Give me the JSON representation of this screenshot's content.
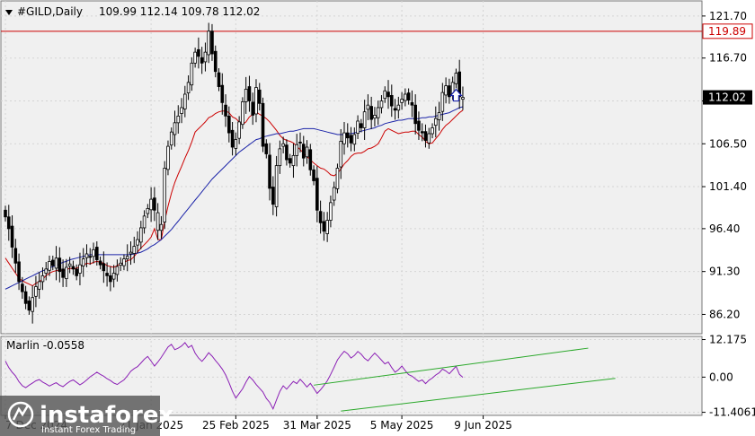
{
  "chart_data": [
    {
      "type": "candlestick",
      "header": {
        "symbol": "#GILD,Daily",
        "ohlc": "109.99 112.14 109.78 112.02"
      },
      "y_ticks": [
        "121.70",
        "116.70",
        "111.60",
        "106.50",
        "101.40",
        "96.40",
        "91.30",
        "86.20"
      ],
      "y_tick_values": [
        121.7,
        116.7,
        111.6,
        106.5,
        101.4,
        96.4,
        91.3,
        86.2
      ],
      "ylim": [
        83.9,
        123.5
      ],
      "resistance_level": {
        "value": 119.89,
        "label": "119.89",
        "color": "#cc0000"
      },
      "last_price": {
        "value": 112.02,
        "label": "112.02"
      },
      "x_ticks": [
        {
          "label": "7 Dec 2024",
          "bar": 0
        },
        {
          "label": "21 Jan 2025",
          "bar": 43
        },
        {
          "label": "25 Feb 2025",
          "bar": 68
        },
        {
          "label": "31 Mar 2025",
          "bar": 92
        },
        {
          "label": "5 May 2025",
          "bar": 117
        },
        {
          "label": "9 Jun 2025",
          "bar": 141
        }
      ],
      "closes": [
        97.8,
        96.4,
        94.2,
        92.3,
        90.1,
        88.9,
        87.5,
        86.7,
        88.2,
        89.5,
        90.1,
        90.8,
        91.6,
        92.5,
        92.0,
        92.9,
        91.3,
        90.6,
        91.8,
        92.2,
        91.6,
        90.8,
        92.1,
        92.8,
        93.4,
        93.1,
        93.9,
        92.7,
        92.1,
        91.4,
        90.8,
        90.1,
        91.1,
        91.9,
        92.3,
        92.8,
        93.1,
        93.6,
        94.3,
        95.1,
        96.5,
        97.9,
        98.8,
        99.9,
        98.6,
        96.2,
        96.9,
        103.6,
        106.2,
        107.9,
        109.0,
        109.8,
        110.8,
        112.4,
        113.8,
        116.1,
        117.4,
        116.9,
        116.1,
        117.4,
        119.9,
        117.2,
        115.1,
        113.3,
        111.4,
        109.8,
        107.8,
        106.1,
        107.0,
        109.1,
        111.5,
        113.0,
        111.6,
        109.9,
        113.2,
        111.3,
        106.2,
        105.3,
        101.2,
        99.3,
        103.9,
        105.9,
        106.5,
        104.6,
        104.2,
        105.1,
        106.4,
        106.6,
        104.8,
        106.1,
        103.4,
        102.1,
        98.6,
        97.1,
        96.1,
        97.4,
        99.5,
        101.3,
        103.6,
        106.8,
        107.8,
        107.2,
        106.6,
        107.6,
        109.2,
        108.4,
        110.3,
        111.1,
        109.4,
        109.9,
        110.8,
        111.6,
        112.8,
        112.1,
        111.0,
        110.5,
        111.1,
        111.8,
        112.4,
        111.7,
        111.1,
        108.9,
        108.1,
        107.8,
        106.9,
        107.7,
        108.4,
        109.5,
        110.2,
        112.6,
        113.4,
        112.1,
        113.8,
        114.9,
        112.1,
        112.02
      ],
      "bullish_bars": [
        45,
        52,
        69,
        98,
        128,
        135
      ],
      "candle_color": "#000000",
      "indicators": [
        {
          "name": "red-ma",
          "color": "#cc0000",
          "values": [
            92.9,
            92.3,
            91.7,
            91.1,
            90.5,
            90.2,
            90.0,
            89.8,
            89.6,
            89.9,
            90.1,
            90.4,
            90.8,
            91.1,
            91.3,
            91.4,
            91.5,
            91.4,
            91.5,
            91.7,
            91.6,
            91.7,
            91.9,
            92.0,
            92.3,
            92.2,
            92.4,
            92.5,
            92.4,
            92.3,
            92.0,
            91.9,
            91.8,
            92.0,
            92.2,
            92.4,
            92.6,
            92.7,
            93.1,
            93.6,
            94.1,
            94.5,
            94.9,
            95.4,
            96.4,
            95.1,
            95.1,
            97.3,
            99.1,
            100.6,
            101.9,
            102.9,
            103.8,
            104.8,
            105.7,
            106.7,
            107.9,
            108.3,
            108.7,
            109.1,
            109.6,
            109.8,
            110.1,
            110.3,
            110.4,
            110.4,
            110.2,
            109.7,
            109.5,
            109.1,
            108.8,
            109.1,
            109.7,
            110.0,
            110.3,
            110.0,
            109.8,
            109.5,
            109.1,
            108.6,
            108.1,
            107.5,
            107.1,
            106.9,
            106.8,
            106.6,
            106.2,
            105.8,
            105.4,
            105.0,
            104.6,
            104.2,
            103.9,
            103.6,
            103.5,
            103.2,
            102.8,
            102.7,
            103.0,
            103.5,
            104.1,
            104.5,
            105.0,
            105.3,
            105.4,
            105.4,
            105.6,
            105.9,
            106.0,
            106.2,
            106.5,
            107.2,
            108.0,
            108.3,
            108.1,
            107.9,
            107.7,
            107.8,
            107.9,
            107.9,
            108.0,
            108.0,
            107.6,
            107.3,
            106.8,
            106.5,
            106.6,
            107.1,
            107.6,
            108.2,
            108.7,
            109.0,
            109.4,
            109.8,
            110.2,
            110.5
          ]
        },
        {
          "name": "blue-ma",
          "color": "#1a23a8",
          "values": [
            89.2,
            89.4,
            89.6,
            89.8,
            90.0,
            90.2,
            90.4,
            90.6,
            90.8,
            91.0,
            91.2,
            91.4,
            91.5,
            91.7,
            91.9,
            92.0,
            92.2,
            92.4,
            92.5,
            92.7,
            92.8,
            92.9,
            93.0,
            93.1,
            93.2,
            93.3,
            93.3,
            93.3,
            93.3,
            93.3,
            93.3,
            93.3,
            93.3,
            93.3,
            93.3,
            93.3,
            93.3,
            93.3,
            93.4,
            93.5,
            93.6,
            93.8,
            94.0,
            94.3,
            94.5,
            94.8,
            95.1,
            95.5,
            95.9,
            96.3,
            96.8,
            97.3,
            97.8,
            98.3,
            98.8,
            99.3,
            99.8,
            100.3,
            100.8,
            101.3,
            101.8,
            102.3,
            102.7,
            103.1,
            103.5,
            103.9,
            104.3,
            104.7,
            105.1,
            105.5,
            105.8,
            106.1,
            106.4,
            106.7,
            107.0,
            107.1,
            107.3,
            107.4,
            107.5,
            107.6,
            107.7,
            107.7,
            107.8,
            107.9,
            108.0,
            108.0,
            108.1,
            108.2,
            108.3,
            108.3,
            108.3,
            108.3,
            108.2,
            108.1,
            108.0,
            107.9,
            107.8,
            107.7,
            107.6,
            107.6,
            107.6,
            107.7,
            107.7,
            107.8,
            107.9,
            108.0,
            108.1,
            108.2,
            108.3,
            108.4,
            108.6,
            108.7,
            108.9,
            109.0,
            109.1,
            109.2,
            109.3,
            109.3,
            109.4,
            109.5,
            109.5,
            109.5,
            109.5,
            109.6,
            109.6,
            109.7,
            109.7,
            109.8,
            109.9,
            110.0,
            110.1,
            110.2,
            110.4,
            110.6,
            110.8,
            110.9
          ]
        }
      ],
      "signal_arrow": {
        "bar": 133,
        "direction": "up",
        "color": "#1a23a8"
      }
    },
    {
      "type": "line",
      "name": "Marlin",
      "header": {
        "label": "Marlin -0.0558"
      },
      "y_ticks": [
        "12.175",
        "0.00",
        "-11.4061"
      ],
      "y_tick_values": [
        12.175,
        0,
        -11.4061
      ],
      "ylim": [
        -12.4,
        13.2
      ],
      "color": "#8b1fb5",
      "values": [
        5.2,
        3.1,
        1.6,
        0.4,
        -1.5,
        -2.8,
        -3.4,
        -2.6,
        -1.9,
        -1.2,
        -0.8,
        -1.6,
        -2.2,
        -2.9,
        -2.3,
        -1.8,
        -2.6,
        -3.1,
        -2.2,
        -1.4,
        -0.9,
        -1.7,
        -2.5,
        -1.8,
        -0.9,
        0.1,
        0.8,
        1.6,
        0.9,
        0.3,
        -0.5,
        -1.1,
        -1.9,
        -2.4,
        -1.6,
        -0.9,
        0.4,
        1.9,
        2.8,
        3.4,
        4.6,
        5.8,
        6.7,
        5.2,
        3.6,
        4.9,
        6.4,
        8.1,
        9.8,
        10.6,
        8.9,
        9.4,
        10.1,
        11.2,
        9.6,
        10.3,
        7.8,
        6.2,
        5.1,
        6.4,
        7.9,
        6.8,
        5.4,
        4.1,
        2.6,
        0.7,
        -1.8,
        -4.6,
        -6.8,
        -5.3,
        -3.8,
        -1.6,
        0.2,
        -0.9,
        -2.4,
        -3.6,
        -4.8,
        -6.9,
        -8.2,
        -10.3,
        -7.4,
        -4.6,
        -2.8,
        -3.9,
        -2.6,
        -1.4,
        -2.1,
        -0.7,
        -1.9,
        -3.2,
        -2.0,
        -3.6,
        -5.3,
        -4.1,
        -2.7,
        -1.2,
        0.9,
        3.2,
        5.6,
        7.1,
        8.4,
        7.6,
        6.2,
        7.0,
        8.3,
        7.4,
        6.1,
        5.3,
        6.6,
        7.8,
        6.7,
        5.5,
        4.3,
        4.9,
        3.1,
        1.6,
        2.4,
        3.6,
        2.1,
        0.8,
        0.3,
        -0.6,
        -1.4,
        -0.9,
        -2.1,
        -1.0,
        -0.3,
        0.7,
        1.4,
        2.6,
        2.0,
        1.1,
        2.3,
        3.5,
        0.9,
        -0.06
      ],
      "channel_color": "#2aa82a",
      "channel_upper": {
        "x1": 91,
        "y1": -2.6,
        "x2": 172,
        "y2": 9.4
      },
      "channel_lower": {
        "x1": 99,
        "y1": -11.0,
        "x2": 180,
        "y2": -0.4
      }
    }
  ],
  "watermark": {
    "brand": "instaforex",
    "tagline": "Instant Forex Trading"
  },
  "colors": {
    "background": "#ffffff",
    "plot_area": "#f0f0f0",
    "grid": "#cfcfcf"
  }
}
